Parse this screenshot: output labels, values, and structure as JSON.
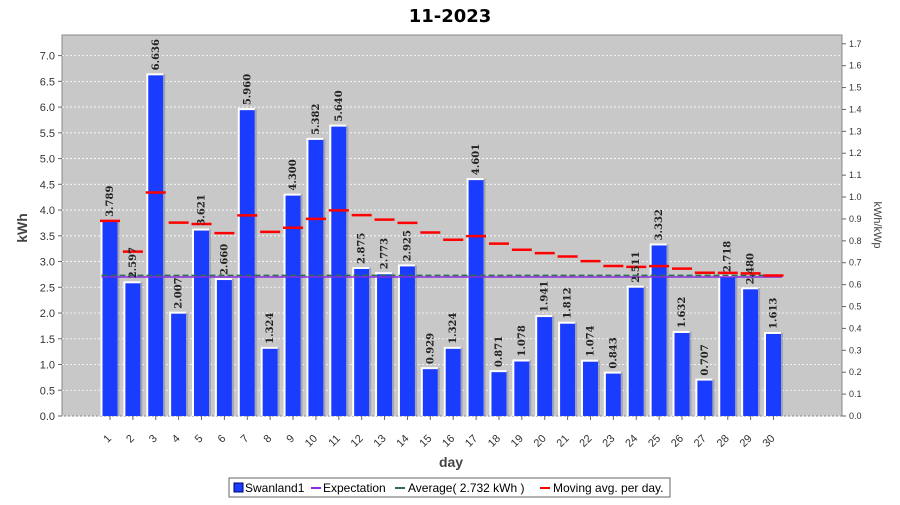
{
  "chart_data": {
    "type": "bar",
    "title": "11-2023",
    "xlabel": "day",
    "ylabel": "kWh",
    "y2label": "kWh/kWp",
    "ylim": [
      0,
      7.4
    ],
    "y2lim": [
      0,
      1.74
    ],
    "yticks": [
      "0.0",
      "0.5",
      "1.0",
      "1.5",
      "2.0",
      "2.5",
      "3.0",
      "3.5",
      "4.0",
      "4.5",
      "5.0",
      "5.5",
      "6.0",
      "6.5",
      "7.0"
    ],
    "y2ticks": [
      "0.0",
      "0.1",
      "0.2",
      "0.3",
      "0.4",
      "0.5",
      "0.6",
      "0.7",
      "0.8",
      "0.9",
      "1.0",
      "1.1",
      "1.2",
      "1.3",
      "1.4",
      "1.5",
      "1.6",
      "1.7"
    ],
    "categories": [
      "1",
      "2",
      "3",
      "4",
      "5",
      "6",
      "7",
      "8",
      "9",
      "10",
      "11",
      "12",
      "13",
      "14",
      "15",
      "16",
      "17",
      "18",
      "19",
      "20",
      "21",
      "22",
      "23",
      "24",
      "25",
      "26",
      "27",
      "28",
      "29",
      "30"
    ],
    "series": [
      {
        "name": "Swanland1",
        "color": "#1a3cff",
        "values": [
          3.789,
          2.597,
          6.636,
          2.007,
          3.621,
          2.66,
          5.96,
          1.324,
          4.3,
          5.382,
          5.64,
          2.875,
          2.773,
          2.925,
          0.929,
          1.324,
          4.601,
          0.871,
          1.078,
          1.941,
          1.812,
          1.074,
          0.843,
          2.511,
          3.332,
          1.632,
          0.707,
          2.718,
          2.48,
          1.613
        ],
        "labels": [
          "3.789",
          "2.597",
          "6.636",
          "2.007",
          "3.621",
          "2.660",
          "5.960",
          "1.324",
          "4.300",
          "5.382",
          "5.640",
          "2.875",
          "2.773",
          "2.925",
          "0.929",
          "1.324",
          "4.601",
          "0.871",
          "1.078",
          "1.941",
          "1.812",
          "1.074",
          "0.843",
          "2.511",
          "3.332",
          "1.632",
          "0.707",
          "2.718",
          "2.480",
          "1.613"
        ]
      },
      {
        "name": "Expectation",
        "color": "#8a2be2",
        "value": 2.7
      },
      {
        "name": "Average( 2.732 kWh )",
        "color": "#2f6f4f",
        "value": 2.732
      },
      {
        "name": "Moving avg. per day.",
        "color": "#ff0000",
        "values": [
          3.789,
          3.193,
          4.341,
          3.757,
          3.73,
          3.552,
          3.896,
          3.575,
          3.656,
          3.829,
          3.994,
          3.901,
          3.814,
          3.751,
          3.563,
          3.423,
          3.493,
          3.347,
          3.228,
          3.164,
          3.099,
          3.007,
          2.913,
          2.896,
          2.912,
          2.863,
          2.783,
          2.78,
          2.769,
          2.73
        ]
      }
    ],
    "grid": true,
    "legend": "bottom"
  }
}
